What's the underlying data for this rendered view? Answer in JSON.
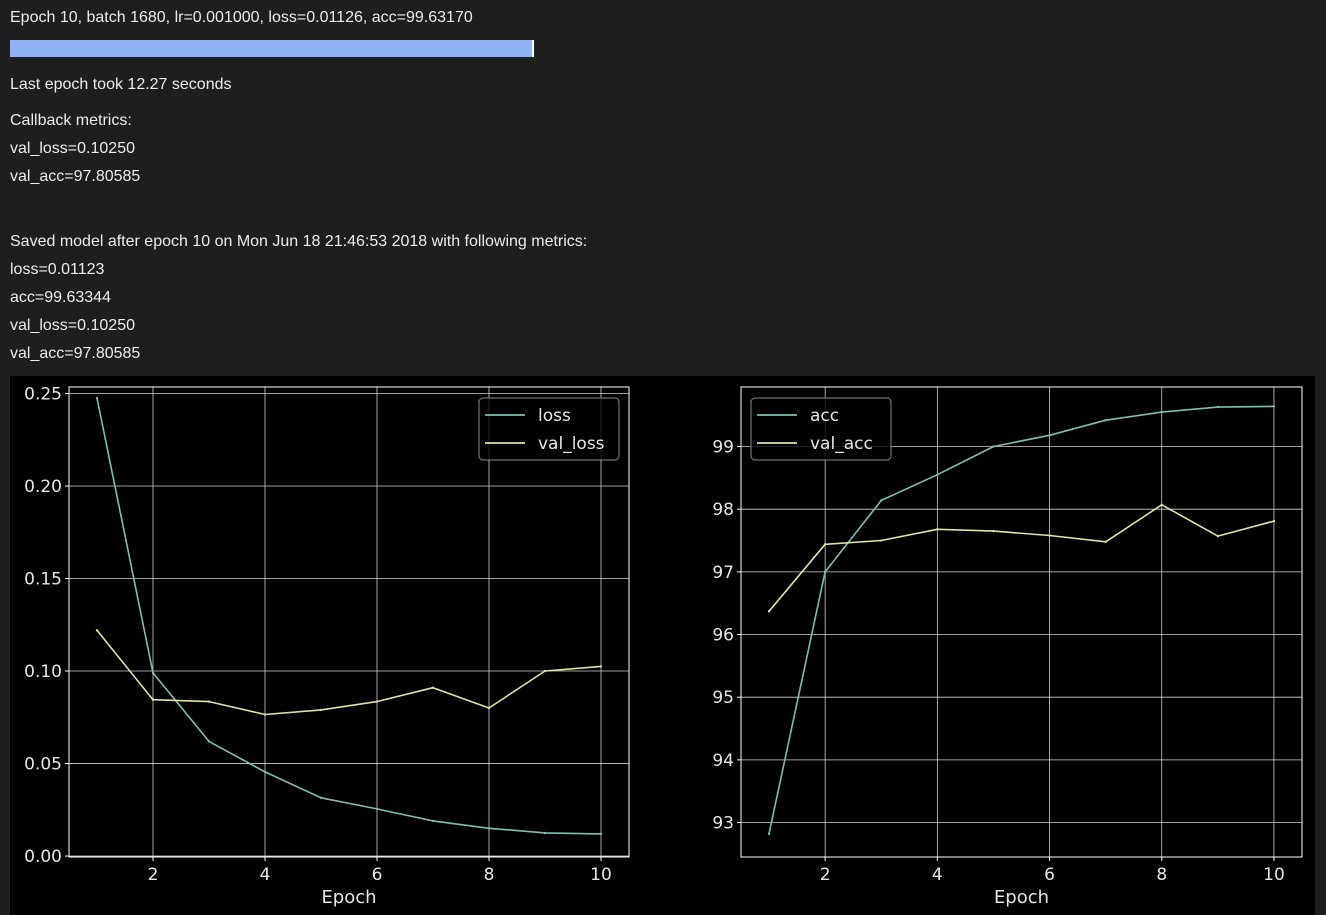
{
  "log": {
    "progress_text": "Epoch 10, batch 1680, lr=0.001000, loss=0.01126, acc=99.63170",
    "progress_fraction": 0.9962,
    "epoch_time": "Last epoch took 12.27 seconds",
    "callback_header": "Callback metrics:",
    "callback_val_loss": "val_loss=0.10250",
    "callback_val_acc": "val_acc=97.80585",
    "saved_text": "Saved model after epoch 10 on Mon Jun 18 21:46:53 2018 with following metrics:",
    "saved_loss": "loss=0.01123",
    "saved_acc": "acc=99.63344",
    "saved_val_loss": "val_loss=0.10250",
    "saved_val_acc": "val_acc=97.80585"
  },
  "colors": {
    "train_series": "#7fbfb0",
    "val_series": "#e3e1a3",
    "progress_fill": "#8fb3f5",
    "grid": "#d0d0d0"
  },
  "chart_data": [
    {
      "type": "line",
      "title": "",
      "xlabel": "Epoch",
      "ylabel": "",
      "xlim": [
        0.5,
        10.5
      ],
      "ylim": [
        -0.0005,
        0.2535
      ],
      "xticks": [
        2,
        4,
        6,
        8,
        10
      ],
      "yticks": [
        0.0,
        0.05,
        0.1,
        0.15,
        0.2,
        0.25
      ],
      "ytick_labels": [
        "0.00",
        "0.05",
        "0.10",
        "0.15",
        "0.20",
        "0.25"
      ],
      "grid": true,
      "legend_position": "top-right",
      "x": [
        1,
        2,
        3,
        4,
        5,
        6,
        7,
        8,
        9,
        10
      ],
      "series": [
        {
          "name": "loss",
          "values": [
            0.2475,
            0.099,
            0.062,
            0.0455,
            0.0315,
            0.0255,
            0.019,
            0.015,
            0.0125,
            0.012
          ]
        },
        {
          "name": "val_loss",
          "values": [
            0.122,
            0.0845,
            0.0835,
            0.0765,
            0.079,
            0.0835,
            0.091,
            0.08,
            0.1,
            0.1025
          ]
        }
      ]
    },
    {
      "type": "line",
      "title": "",
      "xlabel": "Epoch",
      "ylabel": "",
      "xlim": [
        0.5,
        10.5
      ],
      "ylim": [
        92.45,
        99.95
      ],
      "xticks": [
        2,
        4,
        6,
        8,
        10
      ],
      "yticks": [
        93,
        94,
        95,
        96,
        97,
        98,
        99
      ],
      "ytick_labels": [
        "93",
        "94",
        "95",
        "96",
        "97",
        "98",
        "99"
      ],
      "grid": true,
      "legend_position": "top-left",
      "x": [
        1,
        2,
        3,
        4,
        5,
        6,
        7,
        8,
        9,
        10
      ],
      "series": [
        {
          "name": "acc",
          "values": [
            92.82,
            97.0,
            98.14,
            98.55,
            99.0,
            99.18,
            99.42,
            99.55,
            99.63,
            99.64
          ]
        },
        {
          "name": "val_acc",
          "values": [
            96.37,
            97.44,
            97.5,
            97.68,
            97.65,
            97.58,
            97.48,
            98.07,
            97.57,
            97.81
          ]
        }
      ]
    }
  ]
}
